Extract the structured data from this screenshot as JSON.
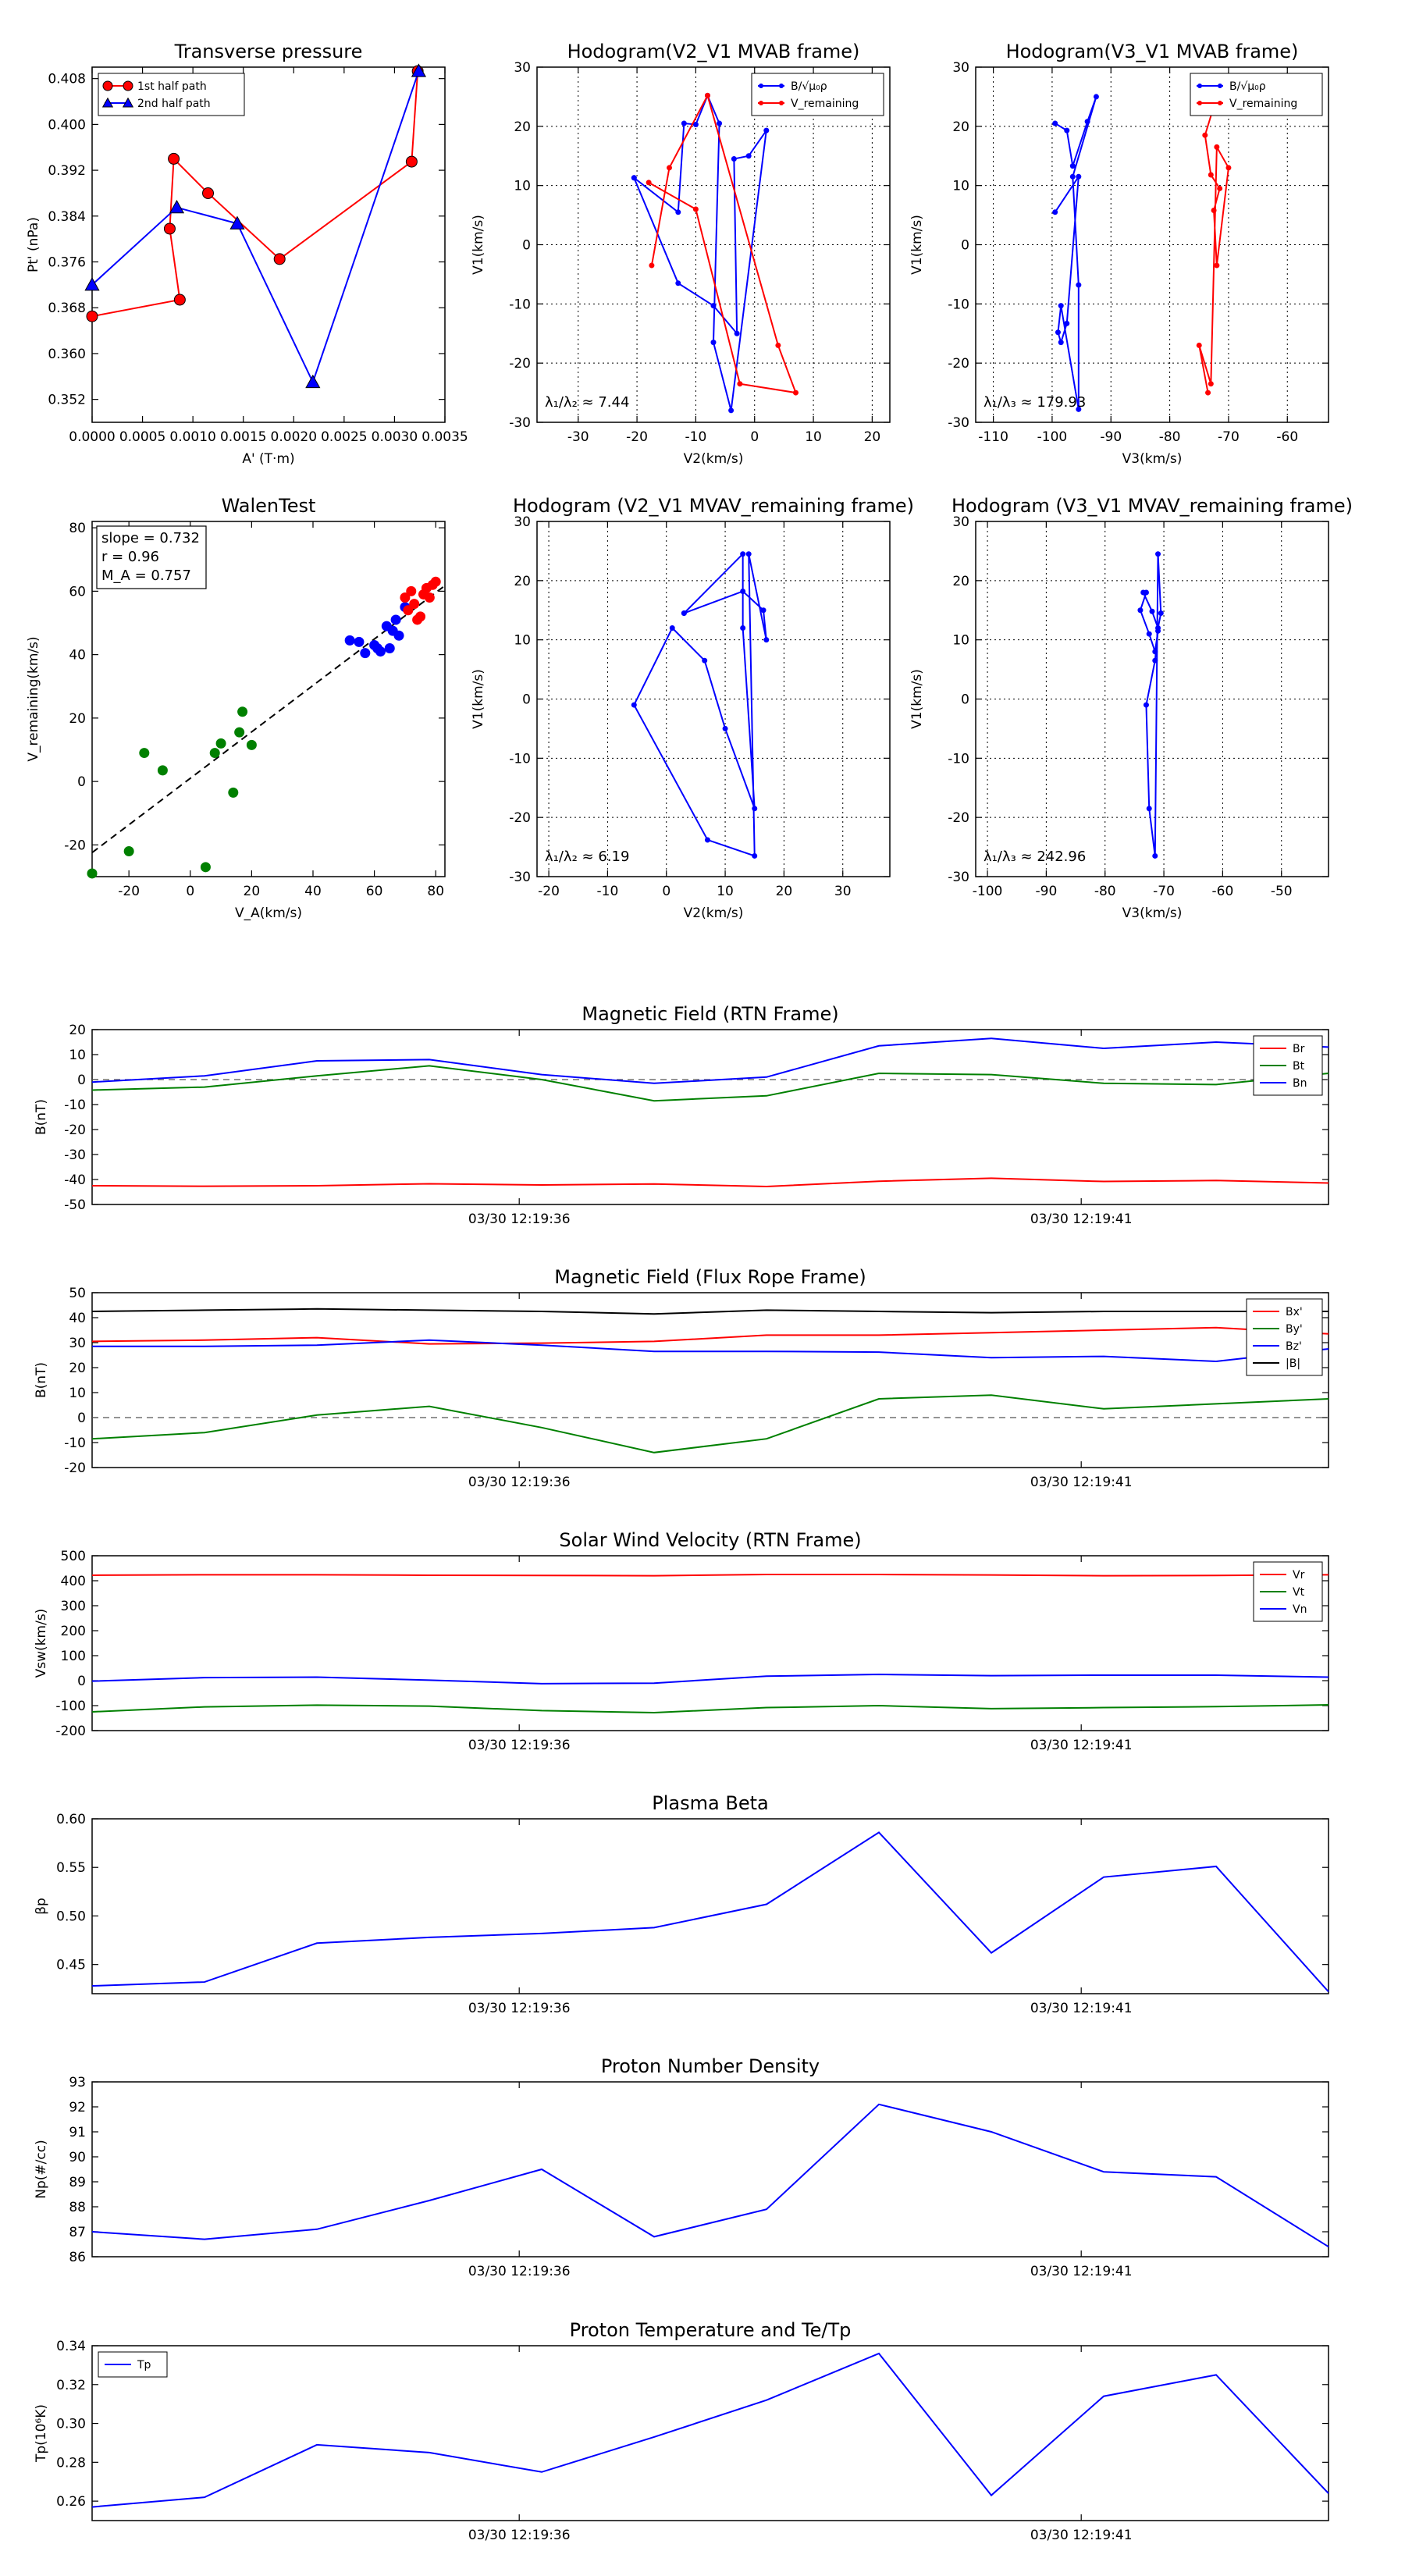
{
  "chart_data": [
    {
      "id": "tp",
      "type": "line",
      "title": "Transverse pressure",
      "xlabel": "A' (T·m)",
      "ylabel": "Pt' (nPa)",
      "xlim": [
        0,
        0.0035
      ],
      "ylim": [
        0.348,
        0.41
      ],
      "xticks": [
        0,
        0.0005,
        0.001,
        0.0015,
        0.002,
        0.0025,
        0.003,
        0.0035
      ],
      "xtick_labels": [
        "0.0000",
        "0.0005",
        "0.0010",
        "0.0015",
        "0.0020",
        "0.0025",
        "0.0030",
        "0.0035"
      ],
      "yticks": [
        0.352,
        0.36,
        0.368,
        0.376,
        0.384,
        0.392,
        0.4,
        0.408
      ],
      "ytick_labels": [
        "0.352",
        "0.360",
        "0.368",
        "0.376",
        "0.384",
        "0.392",
        "0.400",
        "0.408"
      ],
      "grid": false,
      "legend": "top-left",
      "series": [
        {
          "name": "1st half path",
          "color": "#ff0000",
          "marker": "circle",
          "x": [
            0.0,
            0.00087,
            0.00077,
            0.00081,
            0.00115,
            0.00186,
            0.00317,
            0.00323
          ],
          "y": [
            0.3665,
            0.3694,
            0.3818,
            0.394,
            0.388,
            0.3765,
            0.3935,
            0.4093
          ]
        },
        {
          "name": "2nd half path",
          "color": "#0000ff",
          "marker": "triangle",
          "x": [
            0.0,
            0.00084,
            0.00144,
            0.00219,
            0.00324
          ],
          "y": [
            0.372,
            0.3855,
            0.3827,
            0.355,
            0.4093
          ]
        }
      ]
    },
    {
      "id": "h1",
      "type": "line",
      "title": "Hodogram(V2_V1 MVAB frame)",
      "xlabel": "V2(km/s)",
      "ylabel": "V1(km/s)",
      "xlim": [
        -37,
        23
      ],
      "ylim": [
        -30,
        30
      ],
      "xticks": [
        -30,
        -20,
        -10,
        0,
        10,
        20
      ],
      "yticks": [
        -30,
        -20,
        -10,
        0,
        10,
        20,
        30
      ],
      "grid": true,
      "legend": "top-right",
      "annotation": "λ₁/λ₂ ≈ 7.44",
      "series": [
        {
          "name": "B/√μ₀ρ",
          "color": "#0000ff",
          "x": [
            -20.5,
            -13,
            -12,
            -10,
            -8,
            -6,
            -7,
            -4,
            2,
            -1,
            -3.5,
            -3,
            -7,
            -13,
            -20.5
          ],
          "y": [
            11.3,
            5.5,
            20.5,
            20.3,
            25.2,
            20.5,
            -16.5,
            -28,
            19.3,
            15,
            14.5,
            -15,
            -10.3,
            -6.5,
            11.3
          ]
        },
        {
          "name": "V_remaining",
          "color": "#ff0000",
          "x": [
            -17.5,
            -14.5,
            -8,
            4,
            7,
            -2.5,
            -10,
            -18
          ],
          "y": [
            -3.5,
            13,
            25.2,
            -17,
            -25,
            -23.5,
            6,
            10.5
          ]
        }
      ]
    },
    {
      "id": "h2",
      "type": "line",
      "title": "Hodogram(V3_V1 MVAB frame)",
      "xlabel": "V3(km/s)",
      "ylabel": "V1(km/s)",
      "xlim": [
        -113,
        -53
      ],
      "ylim": [
        -30,
        30
      ],
      "xticks": [
        -110,
        -100,
        -90,
        -80,
        -70,
        -60
      ],
      "yticks": [
        -30,
        -20,
        -10,
        0,
        10,
        20,
        30
      ],
      "grid": true,
      "legend": "top-right",
      "annotation": "λ₁/λ₃ ≈ 179.93",
      "series": [
        {
          "name": "B/√μ₀ρ",
          "color": "#0000ff",
          "x": [
            -99.5,
            -97.5,
            -96.5,
            -94,
            -92.5,
            -96.5,
            -95.5,
            -95.5,
            -98.5,
            -99,
            -98.5,
            -97.5,
            -95.5,
            -99.5
          ],
          "y": [
            20.5,
            19.3,
            13.3,
            20.8,
            25,
            11.5,
            -6.8,
            -27.8,
            -10.3,
            -14.8,
            -16.5,
            -13.3,
            11.5,
            5.5
          ]
        },
        {
          "name": "V_remaining",
          "color": "#ff0000",
          "x": [
            -72,
            -74,
            -73,
            -71.5,
            -72.5,
            -72,
            -70,
            -72,
            -73,
            -75,
            -73.5
          ],
          "y": [
            25,
            18.5,
            11.8,
            9.5,
            5.8,
            -3.5,
            13,
            16.5,
            -23.5,
            -17,
            -25
          ]
        }
      ]
    },
    {
      "id": "walen",
      "type": "scatter",
      "title": "WalenTest",
      "xlabel": "V_A(km/s)",
      "ylabel": "V_remaining(km/s)",
      "xlim": [
        -32,
        83
      ],
      "ylim": [
        -30,
        82
      ],
      "xticks": [
        -20,
        0,
        20,
        40,
        60,
        80
      ],
      "yticks": [
        -20,
        0,
        20,
        40,
        60,
        80
      ],
      "grid": false,
      "annotation_lines": [
        "slope = 0.732",
        "r = 0.96",
        "M_A = 0.757"
      ],
      "fit_line": {
        "slope": 0.732,
        "intercept": 1.0
      },
      "series": [
        {
          "name": "",
          "color": "#008000",
          "x": [
            -32,
            -20,
            -15,
            -9,
            5,
            8,
            10,
            14,
            16,
            17,
            20
          ],
          "y": [
            -29,
            -22,
            9,
            3.5,
            -27,
            9,
            12,
            -3.5,
            15.5,
            22,
            11.5
          ]
        },
        {
          "name": "",
          "color": "#0000ff",
          "x": [
            52,
            55,
            57,
            60,
            61,
            62,
            64,
            65,
            66,
            67,
            68,
            70
          ],
          "y": [
            44.5,
            44,
            40.5,
            43,
            42,
            41,
            49,
            42,
            47.5,
            51,
            46,
            55
          ]
        },
        {
          "name": "",
          "color": "#ff0000",
          "x": [
            70,
            71,
            72,
            73,
            74,
            75,
            76,
            77,
            78,
            79,
            80
          ],
          "y": [
            58,
            54,
            60,
            56,
            51,
            52,
            59,
            61,
            58,
            62,
            63
          ]
        }
      ]
    },
    {
      "id": "h3",
      "type": "line",
      "title": "Hodogram (V2_V1 MVAV_remaining frame)",
      "xlabel": "V2(km/s)",
      "ylabel": "V1(km/s)",
      "xlim": [
        -22,
        38
      ],
      "ylim": [
        -30,
        30
      ],
      "xticks": [
        -20,
        -10,
        0,
        10,
        20,
        30
      ],
      "yticks": [
        -30,
        -20,
        -10,
        0,
        10,
        20,
        30
      ],
      "grid": true,
      "annotation": "λ₁/λ₂ ≈ 6.19",
      "series": [
        {
          "name": "",
          "color": "#0000ff",
          "x": [
            3,
            13,
            16.5,
            17,
            14,
            15,
            7,
            -5.5,
            1,
            6.5,
            10,
            15,
            13,
            13,
            3
          ],
          "y": [
            14.5,
            18.2,
            15,
            10,
            24.5,
            -26.5,
            -23.8,
            -1,
            12,
            6.5,
            -5,
            -18.5,
            12,
            24.5,
            14.5
          ]
        }
      ]
    },
    {
      "id": "h4",
      "type": "line",
      "title": "Hodogram (V3_V1 MVAV_remaining frame)",
      "xlabel": "V3(km/s)",
      "ylabel": "V1(km/s)",
      "xlim": [
        -102,
        -42
      ],
      "ylim": [
        -30,
        30
      ],
      "xticks": [
        -100,
        -90,
        -80,
        -70,
        -60,
        -50
      ],
      "yticks": [
        -30,
        -20,
        -10,
        0,
        10,
        20,
        30
      ],
      "grid": true,
      "annotation": "λ₁/λ₃ ≈ 242.96",
      "series": [
        {
          "name": "",
          "color": "#0000ff",
          "x": [
            -73.5,
            -72,
            -71,
            -70.5,
            -71,
            -71.5,
            -72.5,
            -73,
            -71.5,
            -71,
            -71.5,
            -72.5,
            -74,
            -73
          ],
          "y": [
            18,
            14.8,
            12,
            14.5,
            24.5,
            -26.5,
            -18.5,
            -1,
            6.5,
            11.5,
            8,
            11,
            15,
            18
          ]
        }
      ]
    },
    {
      "id": "ts1",
      "type": "line",
      "title": "Magnetic Field (RTN Frame)",
      "ylabel": "B(nT)",
      "ylim": [
        -50,
        20
      ],
      "yticks": [
        -50,
        -40,
        -30,
        -20,
        -10,
        0,
        10,
        20
      ],
      "xticks_at": [
        3.8,
        8.8
      ],
      "xtick_labels": [
        "03/30 12:19:36",
        "03/30 12:19:41"
      ],
      "xlim": [
        0,
        11
      ],
      "zero_line": true,
      "legend": "top-right",
      "x": [
        0,
        1,
        2,
        3,
        4,
        5,
        6,
        7,
        8,
        9,
        10,
        11
      ],
      "series": [
        {
          "name": "Br",
          "color": "#ff0000",
          "values": [
            -42.5,
            -42.7,
            -42.5,
            -41.7,
            -42.2,
            -41.8,
            -42.8,
            -40.7,
            -39.5,
            -40.8,
            -40.4,
            -41.4
          ]
        },
        {
          "name": "Bt",
          "color": "#008000",
          "values": [
            -4.2,
            -3,
            1.5,
            5.5,
            0,
            -8.5,
            -6.5,
            2.5,
            2,
            -1.5,
            -2,
            2.5
          ]
        },
        {
          "name": "Bn",
          "color": "#0000ff",
          "values": [
            -1,
            1.5,
            7.5,
            8,
            2,
            -1.5,
            1,
            13.5,
            16.5,
            12.5,
            15,
            13
          ]
        }
      ]
    },
    {
      "id": "ts2",
      "type": "line",
      "title": "Magnetic Field (Flux Rope Frame)",
      "ylabel": "B(nT)",
      "ylim": [
        -20,
        50
      ],
      "yticks": [
        -20,
        -10,
        0,
        10,
        20,
        30,
        40,
        50
      ],
      "xticks_at": [
        3.8,
        8.8
      ],
      "xtick_labels": [
        "03/30 12:19:36",
        "03/30 12:19:41"
      ],
      "xlim": [
        0,
        11
      ],
      "zero_line": true,
      "legend": "top-right",
      "x": [
        0,
        1,
        2,
        3,
        4,
        5,
        6,
        7,
        8,
        9,
        10,
        11
      ],
      "series": [
        {
          "name": "Bx'",
          "color": "#ff0000",
          "values": [
            30.5,
            31,
            32,
            29.5,
            29.8,
            30.5,
            33,
            33,
            34,
            35,
            36,
            33.5
          ]
        },
        {
          "name": "By'",
          "color": "#008000",
          "values": [
            -8.5,
            -6,
            1,
            4.5,
            -4,
            -14,
            -8.5,
            7.5,
            9,
            3.5,
            5.5,
            7.5
          ]
        },
        {
          "name": "Bz'",
          "color": "#0000ff",
          "values": [
            28.5,
            28.5,
            29,
            31,
            29,
            26.5,
            26.5,
            26.2,
            24,
            24.5,
            22.5,
            27.5
          ]
        },
        {
          "name": "|B|",
          "color": "#000000",
          "values": [
            42.5,
            43,
            43.5,
            43,
            42.5,
            41.5,
            43,
            42.5,
            42,
            42.5,
            42.5,
            42.5
          ]
        }
      ]
    },
    {
      "id": "ts3",
      "type": "line",
      "title": "Solar Wind Velocity (RTN Frame)",
      "ylabel": "Vsw(km/s)",
      "ylim": [
        -200,
        500
      ],
      "yticks": [
        -200,
        -100,
        0,
        100,
        200,
        300,
        400,
        500
      ],
      "xticks_at": [
        3.8,
        8.8
      ],
      "xtick_labels": [
        "03/30 12:19:36",
        "03/30 12:19:41"
      ],
      "xlim": [
        0,
        11
      ],
      "legend": "top-right",
      "x": [
        0,
        1,
        2,
        3,
        4,
        5,
        6,
        7,
        8,
        9,
        10,
        11
      ],
      "series": [
        {
          "name": "Vr",
          "color": "#ff0000",
          "values": [
            422,
            424,
            424,
            422,
            421,
            420,
            425,
            425,
            423,
            420,
            421,
            424
          ]
        },
        {
          "name": "Vt",
          "color": "#008000",
          "values": [
            -125,
            -105,
            -98,
            -102,
            -120,
            -128,
            -108,
            -100,
            -112,
            -108,
            -104,
            -97
          ]
        },
        {
          "name": "Vn",
          "color": "#0000ff",
          "values": [
            -2,
            12,
            14,
            2,
            -12,
            -10,
            18,
            25,
            20,
            22,
            22,
            14
          ]
        }
      ]
    },
    {
      "id": "ts4",
      "type": "line",
      "title": "Plasma Beta",
      "ylabel": "βp",
      "ylim": [
        0.42,
        0.6
      ],
      "yticks": [
        0.45,
        0.5,
        0.55,
        0.6
      ],
      "ytick_labels": [
        "0.45",
        "0.50",
        "0.55",
        "0.60"
      ],
      "xticks_at": [
        3.8,
        8.8
      ],
      "xtick_labels": [
        "03/30 12:19:36",
        "03/30 12:19:41"
      ],
      "xlim": [
        0,
        11
      ],
      "x": [
        0,
        1,
        2,
        3,
        4,
        5,
        6,
        7,
        8,
        9,
        10,
        11
      ],
      "series": [
        {
          "name": "",
          "color": "#0000ff",
          "values": [
            0.428,
            0.432,
            0.472,
            0.478,
            0.482,
            0.488,
            0.512,
            0.586,
            0.462,
            0.54,
            0.551,
            0.422
          ]
        }
      ]
    },
    {
      "id": "ts5",
      "type": "line",
      "title": "Proton Number Density",
      "ylabel": "Np(#/cc)",
      "ylim": [
        86,
        93
      ],
      "yticks": [
        86,
        87,
        88,
        89,
        90,
        91,
        92,
        93
      ],
      "xticks_at": [
        3.8,
        8.8
      ],
      "xtick_labels": [
        "03/30 12:19:36",
        "03/30 12:19:41"
      ],
      "xlim": [
        0,
        11
      ],
      "x": [
        0,
        1,
        2,
        3,
        4,
        5,
        6,
        7,
        8,
        9,
        10,
        11
      ],
      "series": [
        {
          "name": "",
          "color": "#0000ff",
          "values": [
            87,
            86.7,
            87.1,
            88.25,
            89.5,
            86.8,
            87.9,
            92.1,
            91,
            89.4,
            89.2,
            86.4
          ]
        }
      ]
    },
    {
      "id": "ts6",
      "type": "line",
      "title": "Proton Temperature and Te/Tp",
      "ylabel": "Tp(10⁶K)",
      "ylim": [
        0.25,
        0.34
      ],
      "yticks": [
        0.26,
        0.28,
        0.3,
        0.32,
        0.34
      ],
      "ytick_labels": [
        "0.26",
        "0.28",
        "0.30",
        "0.32",
        "0.34"
      ],
      "xticks_at": [
        3.8,
        8.8
      ],
      "xtick_labels": [
        "03/30 12:19:36",
        "03/30 12:19:41"
      ],
      "xlim": [
        0,
        11
      ],
      "legend": "top-left",
      "x": [
        0,
        1,
        2,
        3,
        4,
        5,
        6,
        7,
        8,
        9,
        10,
        11
      ],
      "series": [
        {
          "name": "Tp",
          "color": "#0000ff",
          "values": [
            0.257,
            0.262,
            0.289,
            0.285,
            0.275,
            0.293,
            0.312,
            0.336,
            0.263,
            0.314,
            0.325,
            0.264
          ]
        }
      ]
    }
  ]
}
